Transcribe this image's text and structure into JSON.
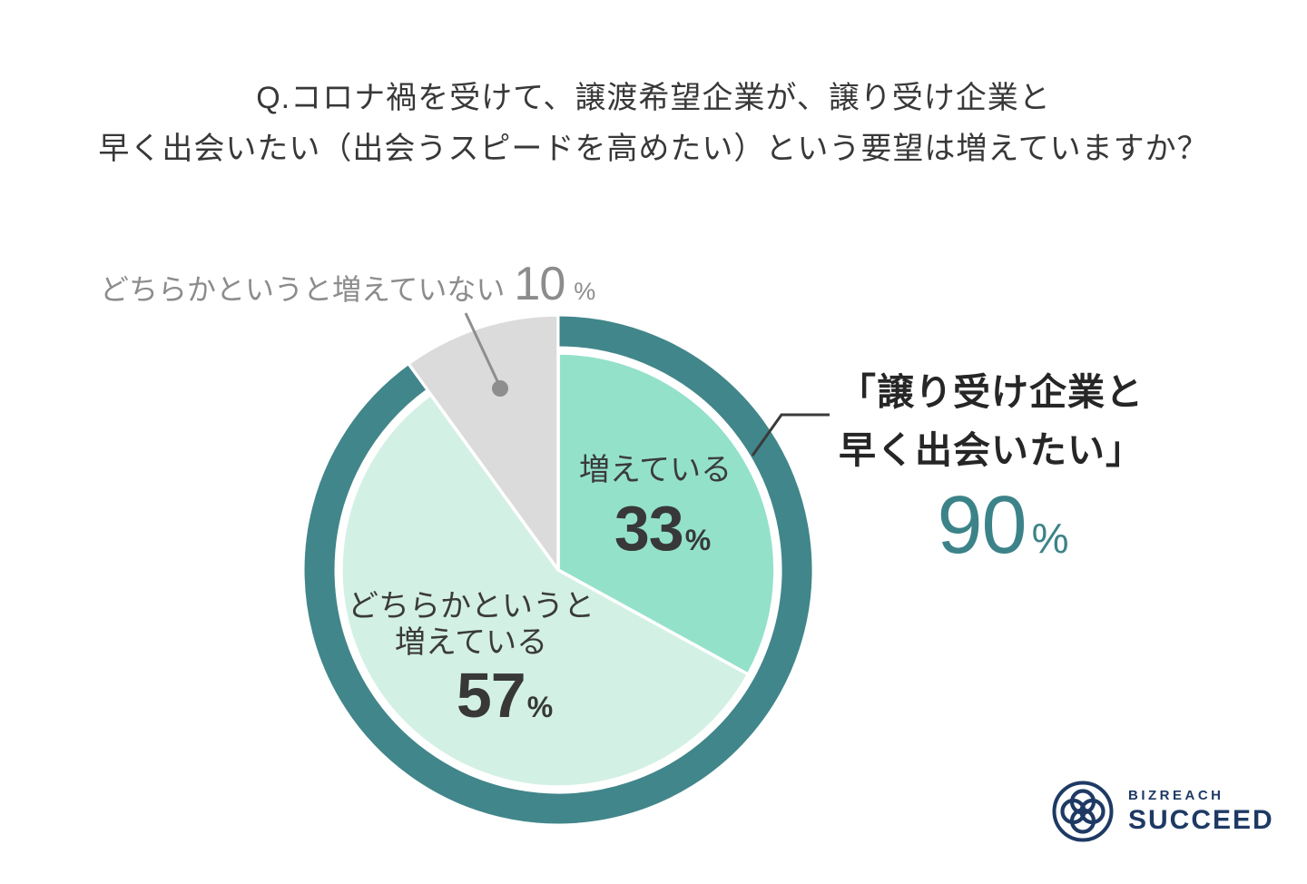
{
  "title": {
    "line1": "Q.コロナ禍を受けて、譲渡希望企業が、譲り受け企業と",
    "line2": "早く出会いたい（出会うスピードを高めたい）という要望は増えていますか？"
  },
  "chart_data": {
    "type": "pie",
    "unit": "%",
    "direction": "clockwise",
    "start_angle_deg": 0,
    "slices": [
      {
        "label": "増えている",
        "value": 33,
        "color": "#94E1CA"
      },
      {
        "label": "どちらかというと増えている",
        "label_lines": [
          "どちらかというと",
          "増えている"
        ],
        "value": 57,
        "color": "#D3F0E4"
      },
      {
        "label": "どちらかというと増えていない",
        "value": 10,
        "color": "#DBDBDB",
        "full_radius": true
      }
    ],
    "ring": {
      "label": "「譲り受け企業と早く出会いたい」",
      "label_lines": [
        "「譲り受け企業と",
        "早く出会いたい」"
      ],
      "value": 90,
      "color": "#41868A",
      "value_color": "#3C8389"
    },
    "legend_position": "none",
    "gridlines": false
  },
  "logo": {
    "brand": "BIZREACH",
    "product": "SUCCEED",
    "color": "#1E3A64"
  },
  "colors": {
    "background": "#FFFFFF",
    "title_text": "#383838",
    "label_text": "#3B3B3B",
    "muted_text": "#8C8C8C",
    "callout_line": "#3A3A3A"
  }
}
